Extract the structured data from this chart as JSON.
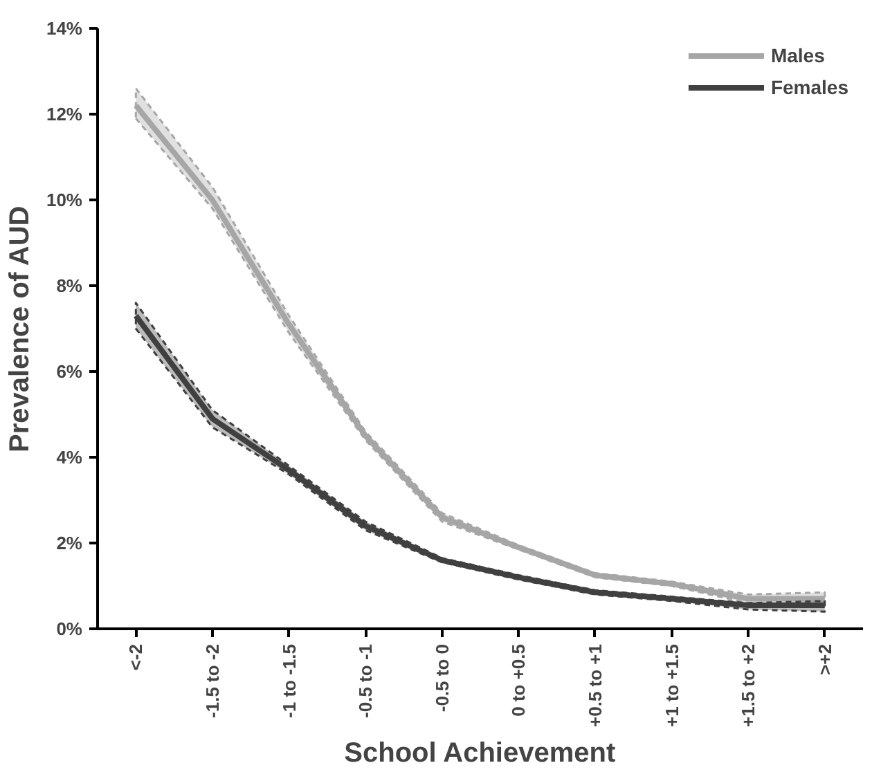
{
  "chart_data": {
    "type": "line",
    "xlabel": "School Achievement",
    "ylabel": "Prevalence of AUD",
    "categories": [
      "<-2",
      "-1.5 to -2",
      "-1 to -1.5",
      "-0.5 to -1",
      "-0.5 to 0",
      "0 to +0.5",
      "+0.5 to +1",
      "+1 to +1.5",
      "+1.5 to +2",
      ">+2"
    ],
    "series": [
      {
        "name": "Males",
        "color": "#a6a6a6",
        "values": [
          12.2,
          10.0,
          7.1,
          4.5,
          2.6,
          1.9,
          1.25,
          1.05,
          0.7,
          0.7
        ],
        "lower": [
          11.9,
          9.8,
          6.9,
          4.4,
          2.5,
          1.85,
          1.2,
          1.0,
          0.6,
          0.55
        ],
        "upper": [
          12.6,
          10.3,
          7.3,
          4.6,
          2.7,
          1.95,
          1.3,
          1.1,
          0.8,
          0.85
        ]
      },
      {
        "name": "Females",
        "color": "#404040",
        "values": [
          7.3,
          4.9,
          3.7,
          2.4,
          1.6,
          1.2,
          0.85,
          0.7,
          0.55,
          0.55
        ],
        "lower": [
          7.0,
          4.7,
          3.6,
          2.3,
          1.55,
          1.15,
          0.8,
          0.65,
          0.45,
          0.4
        ],
        "upper": [
          7.6,
          5.1,
          3.8,
          2.5,
          1.65,
          1.25,
          0.9,
          0.75,
          0.6,
          0.65
        ]
      }
    ],
    "ylim": [
      0,
      14
    ],
    "yticks": [
      {
        "value": 0,
        "label": "0%"
      },
      {
        "value": 2,
        "label": "2%"
      },
      {
        "value": 4,
        "label": "4%"
      },
      {
        "value": 6,
        "label": "6%"
      },
      {
        "value": 8,
        "label": "8%"
      },
      {
        "value": 10,
        "label": "10%"
      },
      {
        "value": 12,
        "label": "12%"
      },
      {
        "value": 14,
        "label": "14%"
      }
    ],
    "grid": false,
    "legend": "top right",
    "marker": "none",
    "line_style": "solid"
  }
}
